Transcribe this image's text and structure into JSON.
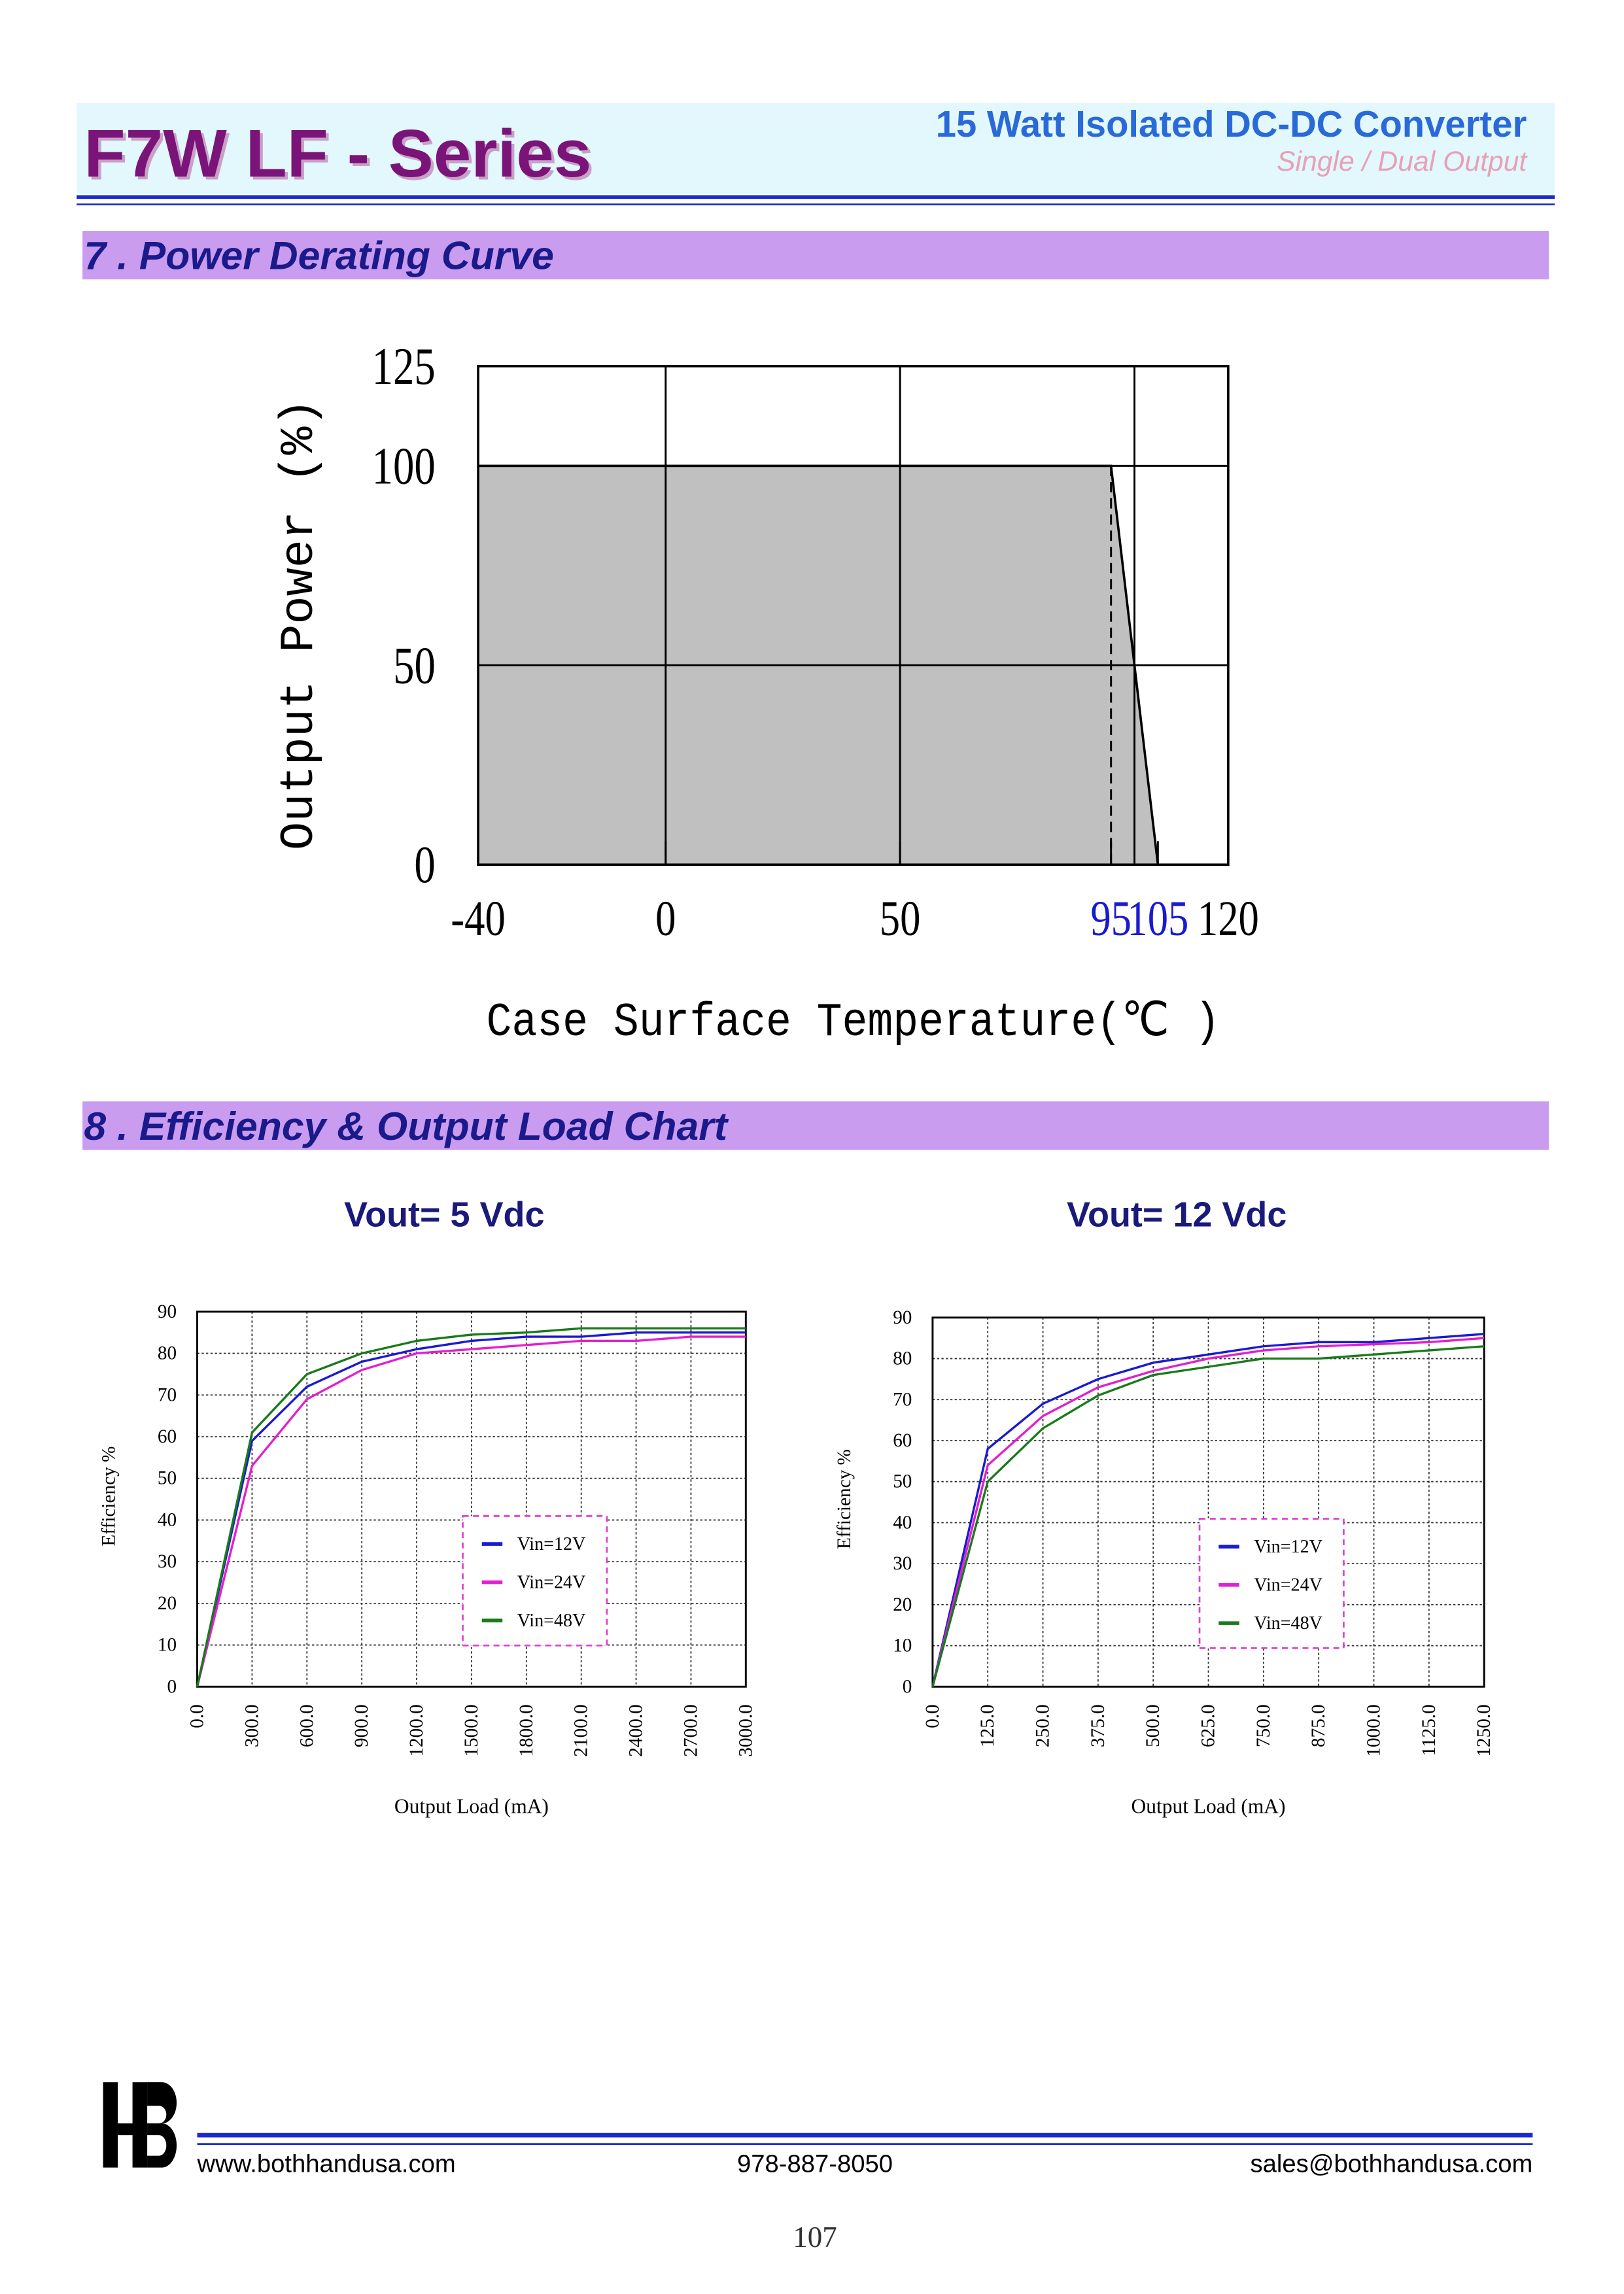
{
  "header": {
    "title": "F7W LF - Series",
    "subtitle": "15 Watt Isolated DC-DC Converter",
    "output": "Single / Dual Output"
  },
  "sections": [
    "7 . Power Derating Curve",
    "8 . Efficiency & Output Load Chart"
  ],
  "chart_data": [
    {
      "type": "area",
      "xlabel": "Case Surface Temperature(℃ )",
      "ylabel": "Output Power (%)",
      "x": [
        -40,
        95,
        105
      ],
      "values": [
        100,
        100,
        0
      ],
      "color": "#000000",
      "fill": "#c0c0c0",
      "xlim": [
        -40,
        120
      ],
      "ylim": [
        0,
        125
      ],
      "xticks": [
        -40,
        0,
        50,
        95,
        105,
        120
      ],
      "xtick_colors": [
        "#000000",
        "#000000",
        "#000000",
        "#1a1ad0",
        "#1a1ad0",
        "#000000"
      ],
      "yticks": [
        0,
        50,
        100,
        125
      ],
      "xgrid": [
        0,
        50,
        100
      ],
      "grid": true
    },
    {
      "type": "line",
      "title": "Vout= 5 Vdc",
      "xlabel": "Output Load (mA)",
      "ylabel": "Efficiency %",
      "x": [
        0,
        300,
        600,
        900,
        1200,
        1500,
        1800,
        2100,
        2400,
        2700,
        3000
      ],
      "series": [
        {
          "name": "Vin=12V",
          "color": "#1a1ad0",
          "values": [
            0,
            59,
            72,
            78,
            81,
            83,
            84,
            84,
            85,
            85,
            85
          ]
        },
        {
          "name": "Vin=24V",
          "color": "#e020d0",
          "values": [
            0,
            53,
            69,
            76,
            80,
            81,
            82,
            83,
            83,
            84,
            84
          ]
        },
        {
          "name": "Vin=48V",
          "color": "#1a7a1a",
          "values": [
            0,
            61,
            75,
            80,
            83,
            84.5,
            85,
            86,
            86,
            86,
            86
          ]
        }
      ],
      "xlim": [
        0,
        3000
      ],
      "ylim": [
        0,
        90
      ],
      "xticks": [
        {
          "value": 0,
          "label": "0.0"
        },
        {
          "value": 300,
          "label": "300.0"
        },
        {
          "value": 600,
          "label": "600.0"
        },
        {
          "value": 900,
          "label": "900.0"
        },
        {
          "value": 1200,
          "label": "1200.0"
        },
        {
          "value": 1500,
          "label": "1500.0"
        },
        {
          "value": 1800,
          "label": "1800.0"
        },
        {
          "value": 2100,
          "label": "2100.0"
        },
        {
          "value": 2400,
          "label": "2400.0"
        },
        {
          "value": 2700,
          "label": "2700.0"
        },
        {
          "value": 3000,
          "label": "3000.0"
        }
      ],
      "yticks": [
        0,
        10,
        20,
        30,
        40,
        50,
        60,
        70,
        80,
        90
      ],
      "grid": true,
      "legend": "center"
    },
    {
      "type": "line",
      "title": "Vout= 12 Vdc",
      "xlabel": "Output Load (mA)",
      "ylabel": "Efficiency %",
      "x": [
        0,
        125,
        250,
        375,
        500,
        625,
        750,
        875,
        1000,
        1125,
        1250
      ],
      "series": [
        {
          "name": "Vin=12V",
          "color": "#1a1ad0",
          "values": [
            0,
            58,
            69,
            75,
            79,
            81,
            83,
            84,
            84,
            85,
            86
          ]
        },
        {
          "name": "Vin=24V",
          "color": "#e020d0",
          "values": [
            0,
            54,
            66,
            73,
            77,
            80,
            82,
            83,
            83.5,
            84,
            85
          ]
        },
        {
          "name": "Vin=48V",
          "color": "#1a7a1a",
          "values": [
            0,
            50,
            63,
            71,
            76,
            78,
            80,
            80,
            81,
            82,
            83
          ]
        }
      ],
      "xlim": [
        0,
        1250
      ],
      "ylim": [
        0,
        90
      ],
      "xticks": [
        {
          "value": 0,
          "label": "0.0"
        },
        {
          "value": 125,
          "label": "125.0"
        },
        {
          "value": 250,
          "label": "250.0"
        },
        {
          "value": 375,
          "label": "375.0"
        },
        {
          "value": 500,
          "label": "500.0"
        },
        {
          "value": 625,
          "label": "625.0"
        },
        {
          "value": 750,
          "label": "750.0"
        },
        {
          "value": 875,
          "label": "875.0"
        },
        {
          "value": 1000,
          "label": "1000.0"
        },
        {
          "value": 1125,
          "label": "1125.0"
        },
        {
          "value": 1250,
          "label": "1250.0"
        }
      ],
      "yticks": [
        0,
        10,
        20,
        30,
        40,
        50,
        60,
        70,
        80,
        90
      ],
      "grid": true,
      "legend": "center"
    }
  ],
  "footer": {
    "website": "www.bothhandusa.com",
    "phone": "978-887-8050",
    "email": "sales@bothhandusa.com",
    "page": "107"
  }
}
